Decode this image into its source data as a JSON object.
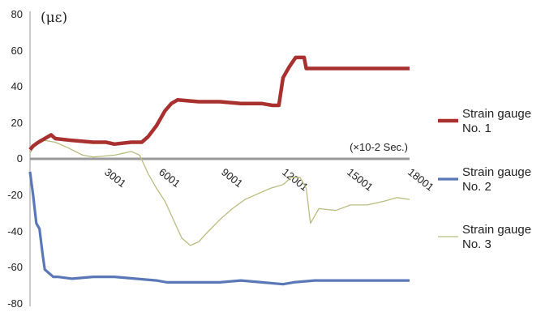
{
  "chart_data": {
    "type": "line",
    "ylabel": "(με)",
    "x_unit_note": "(×10-2 Sec.)",
    "xlim": [
      1,
      18001
    ],
    "ylim": [
      -80,
      80
    ],
    "yticks": [
      "80",
      "60",
      "40",
      "20",
      "0",
      "-20",
      "-40",
      "-60",
      "-80"
    ],
    "xticks": [
      "3001",
      "6001",
      "9001",
      "12001",
      "15001",
      "18001"
    ],
    "grid": false,
    "legend_position": "right",
    "series": [
      {
        "name": "Strain gauge No. 1",
        "color": "#a8312f",
        "points": [
          [
            1,
            5
          ],
          [
            150,
            7
          ],
          [
            400,
            9
          ],
          [
            700,
            11
          ],
          [
            1000,
            13
          ],
          [
            1200,
            11
          ],
          [
            2000,
            10
          ],
          [
            3000,
            9
          ],
          [
            3600,
            9
          ],
          [
            4000,
            8
          ],
          [
            4800,
            9
          ],
          [
            5300,
            9
          ],
          [
            5600,
            12
          ],
          [
            6000,
            18
          ],
          [
            6400,
            26
          ],
          [
            6700,
            30
          ],
          [
            7000,
            32
          ],
          [
            8000,
            31
          ],
          [
            9000,
            31
          ],
          [
            10000,
            30
          ],
          [
            11000,
            30
          ],
          [
            11500,
            29
          ],
          [
            11800,
            29
          ],
          [
            12000,
            44
          ],
          [
            12300,
            50
          ],
          [
            12600,
            55
          ],
          [
            13000,
            55
          ],
          [
            13100,
            49
          ],
          [
            13500,
            49
          ],
          [
            15000,
            49
          ],
          [
            16500,
            49
          ],
          [
            18001,
            49
          ]
        ]
      },
      {
        "name": "Strain gauge No. 2",
        "color": "#5a78b8",
        "points": [
          [
            1,
            -7
          ],
          [
            150,
            -20
          ],
          [
            300,
            -35
          ],
          [
            450,
            -38
          ],
          [
            600,
            -52
          ],
          [
            700,
            -60
          ],
          [
            900,
            -62
          ],
          [
            1100,
            -64
          ],
          [
            1300,
            -64
          ],
          [
            2000,
            -65
          ],
          [
            3000,
            -64
          ],
          [
            4000,
            -64
          ],
          [
            5000,
            -65
          ],
          [
            6000,
            -66
          ],
          [
            6500,
            -67
          ],
          [
            8000,
            -67
          ],
          [
            9000,
            -67
          ],
          [
            10000,
            -66
          ],
          [
            11000,
            -67
          ],
          [
            12000,
            -68
          ],
          [
            12500,
            -67
          ],
          [
            13500,
            -66
          ],
          [
            15000,
            -66
          ],
          [
            16500,
            -66
          ],
          [
            18001,
            -66
          ]
        ]
      },
      {
        "name": "Strain gauge No. 3",
        "color": "#b8bd82",
        "points": [
          [
            1,
            3
          ],
          [
            300,
            9
          ],
          [
            700,
            10
          ],
          [
            1200,
            9
          ],
          [
            1800,
            6
          ],
          [
            2500,
            2
          ],
          [
            3000,
            1
          ],
          [
            4000,
            2
          ],
          [
            4800,
            4
          ],
          [
            5200,
            2
          ],
          [
            5600,
            -8
          ],
          [
            6000,
            -16
          ],
          [
            6400,
            -23
          ],
          [
            6800,
            -33
          ],
          [
            7200,
            -43
          ],
          [
            7600,
            -47
          ],
          [
            8000,
            -45
          ],
          [
            8400,
            -40
          ],
          [
            9000,
            -33
          ],
          [
            9600,
            -27
          ],
          [
            10200,
            -22
          ],
          [
            10800,
            -19
          ],
          [
            11400,
            -16
          ],
          [
            12000,
            -14
          ],
          [
            12400,
            -10
          ],
          [
            12800,
            -10
          ],
          [
            13100,
            -16
          ],
          [
            13300,
            -35
          ],
          [
            13700,
            -27
          ],
          [
            14500,
            -28
          ],
          [
            15200,
            -25
          ],
          [
            16000,
            -25
          ],
          [
            16800,
            -23
          ],
          [
            17400,
            -21
          ],
          [
            18001,
            -22
          ]
        ]
      }
    ]
  }
}
